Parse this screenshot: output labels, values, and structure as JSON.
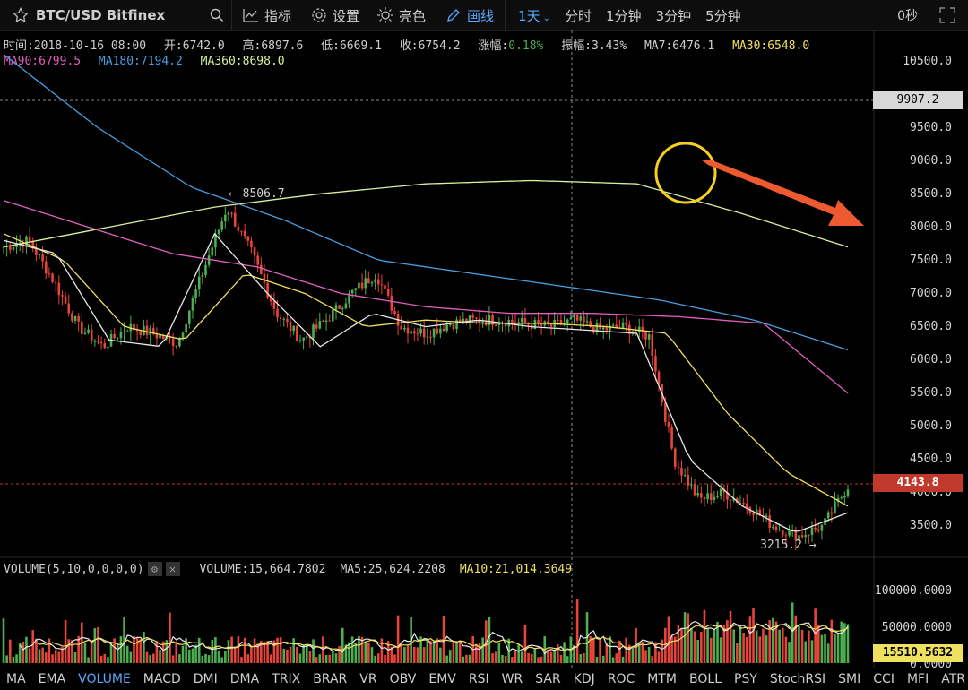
{
  "toolbar": {
    "symbol": "BTC/USD Bitfinex",
    "indicators_label": "指标",
    "settings_label": "设置",
    "theme_label": "亮色",
    "draw_label": "画线",
    "timeframes": [
      "1天",
      "分时",
      "1分钟",
      "3分钟",
      "5分钟"
    ],
    "active_timeframe": "1天",
    "countdown": "0秒"
  },
  "info": {
    "time": "时间:2018-10-16 08:00",
    "open": "开:6742.0",
    "high": "高:6897.6",
    "low": "低:6669.1",
    "close": "收:6754.2",
    "change_label": "涨幅:",
    "change_value": "0.18%",
    "amplitude": "振幅:3.43%",
    "ma7": "MA7:6476.1",
    "ma30": "MA30:6548.0",
    "ma90": "MA90:6799.5",
    "ma180": "MA180:7194.2",
    "ma360": "MA360:8698.0"
  },
  "axis": {
    "price_ticks": [
      "10500.0",
      "9500.0",
      "9000.0",
      "8500.0",
      "8000.0",
      "7500.0",
      "7000.0",
      "6500.0",
      "6000.0",
      "5500.0",
      "5000.0",
      "4500.0",
      "4000.0",
      "3500.0"
    ],
    "crosshair_price": "9907.2",
    "last_price": "4143.8",
    "volume_ticks": [
      "100000.0000",
      "50000.0000",
      "0.0000"
    ],
    "last_volume": "15510.5632"
  },
  "annotations": {
    "high_marker": "8506.7",
    "low_marker": "3215.2"
  },
  "volume": {
    "title": "VOLUME(5,10,0,0,0,0)",
    "value": "VOLUME:15,664.7802",
    "ma5": "MA5:25,624.2208",
    "ma10": "MA10:21,014.3649"
  },
  "indicators": [
    "MA",
    "EMA",
    "VOLUME",
    "MACD",
    "DMI",
    "DMA",
    "TRIX",
    "BRAR",
    "VR",
    "OBV",
    "EMV",
    "RSI",
    "WR",
    "SAR",
    "KDJ",
    "ROC",
    "MTM",
    "BOLL",
    "PSY",
    "StochRSI",
    "SMI",
    "CCI",
    "MFI",
    "ATR"
  ],
  "active_indicator": "VOLUME",
  "colors": {
    "up": "#4caf50",
    "down": "#e8443a",
    "ma7": "#e8e8e8",
    "ma30": "#f0e060",
    "ma90": "#e060c0",
    "ma180": "#4a9ee0",
    "ma360": "#d8f0a0",
    "accent": "#5aa7ff"
  },
  "chart_data": {
    "type": "candlestick",
    "y_range": [
      3200,
      10600
    ],
    "moving_averages": {
      "ma7_keypoints": [
        7800,
        7600,
        6300,
        6200,
        7900,
        7000,
        6200,
        6700,
        6500,
        6600,
        6500,
        6450,
        6400,
        4500,
        3800,
        3400,
        3700
      ],
      "ma30_keypoints": [
        7900,
        7500,
        6500,
        6300,
        7300,
        7000,
        6500,
        6600,
        6550,
        6550,
        6500,
        6400,
        5200,
        4300,
        3800
      ],
      "ma90_keypoints": [
        8400,
        8000,
        7600,
        7400,
        7000,
        6800,
        6700,
        6700,
        6650,
        6550,
        5500
      ],
      "ma180_keypoints": [
        10600,
        9500,
        8600,
        8100,
        7500,
        7300,
        7100,
        6900,
        6600,
        6150
      ],
      "ma360_keypoints": [
        7700,
        8000,
        8300,
        8500,
        8650,
        8700,
        8650,
        8200,
        7700
      ]
    }
  }
}
